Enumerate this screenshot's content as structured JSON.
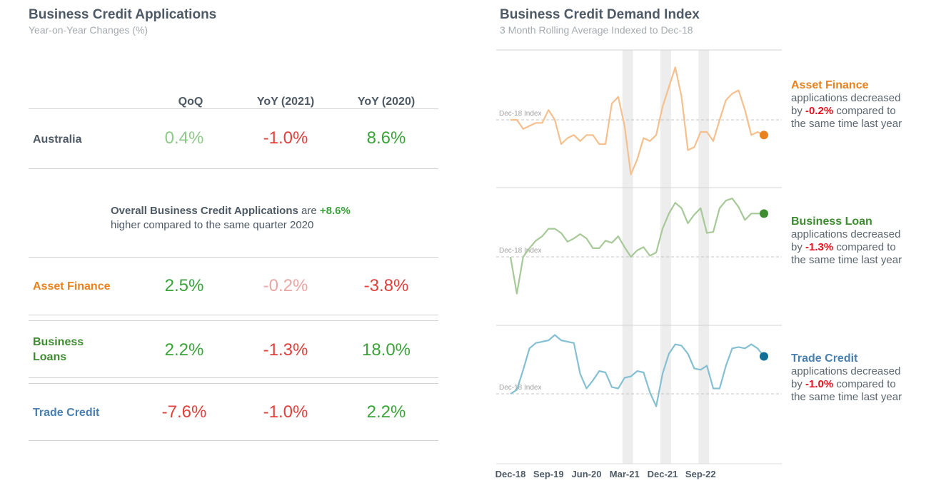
{
  "left_panel": {
    "title": "Business Credit Applications",
    "subtitle": "Year-on-Year Changes (%)",
    "columns": [
      "QoQ",
      "YoY (2021)",
      "YoY (2020)"
    ],
    "rows": [
      {
        "label": "Australia",
        "label_color": "#4e5a65",
        "values": [
          "0.4%",
          "-1.0%",
          "8.6%"
        ],
        "value_colors": [
          "#8fc98a",
          "#e0403c",
          "#3aa33a"
        ]
      },
      {
        "label": "Asset Finance",
        "label_color": "#e8821e",
        "values": [
          "2.5%",
          "-0.2%",
          "-3.8%"
        ],
        "value_colors": [
          "#3aa33a",
          "#e8a6a4",
          "#e0403c"
        ]
      },
      {
        "label": "Business Loans",
        "label_color": "#3d8c2f",
        "values": [
          "2.2%",
          "-1.3%",
          "18.0%"
        ],
        "value_colors": [
          "#3aa33a",
          "#e0403c",
          "#3aa33a"
        ]
      },
      {
        "label": "Trade Credit",
        "label_color": "#4a7fae",
        "values": [
          "-7.6%",
          "-1.0%",
          "2.2%"
        ],
        "value_colors": [
          "#e0403c",
          "#e0403c",
          "#3aa33a"
        ]
      }
    ],
    "note": {
      "bold": "Overall Business Credit Applications",
      "mid": " are ",
      "value": "+8.6%",
      "line2": "higher compared to the same quarter 2020"
    }
  },
  "right_panel": {
    "title": "Business Credit Demand Index",
    "subtitle": "3 Month Rolling Average Indexed to Dec-18",
    "annotations": [
      {
        "name": "Asset Finance",
        "color": "#e8821e",
        "line1": "applications decreased",
        "pre": "by ",
        "value": "-0.2%",
        "post": " compared to",
        "line3": "the same time last year"
      },
      {
        "name": "Business Loan",
        "color": "#3d8c2f",
        "line1": "applications decreased",
        "pre": "by ",
        "value": "-1.3%",
        "post": " compared to",
        "line3": "the same time last year"
      },
      {
        "name": "Trade Credit",
        "color": "#4a7fae",
        "line1": "applications decreased",
        "pre": "by ",
        "value": "-1.0%",
        "post": " compared to",
        "line3": "the same time last year"
      }
    ]
  },
  "chart_data": {
    "type": "line",
    "title": "Business Credit Demand Index",
    "subtitle": "3 Month Rolling Average Indexed to Dec-18",
    "x_tick_labels": [
      "Dec-18",
      "Sep-19",
      "Jun-20",
      "Mar-21",
      "Dec-21",
      "Sep-22"
    ],
    "index_label": "Dec-18 Index",
    "index_value": 100,
    "shaded_bands": [
      [
        18,
        19
      ],
      [
        24,
        25
      ],
      [
        30,
        31
      ]
    ],
    "end_marker": true,
    "grid": false,
    "series": [
      {
        "name": "Asset Finance",
        "color": "#f5c08e",
        "marker_color": "#e8821e",
        "values": [
          100,
          100,
          97,
          98,
          99,
          99,
          103,
          100,
          92,
          94,
          95,
          93,
          95,
          95,
          92,
          92,
          105,
          107,
          98,
          82,
          87,
          94,
          93,
          95,
          104,
          110,
          116,
          107,
          90,
          91,
          96,
          96,
          93,
          100,
          106,
          108,
          109,
          103,
          95,
          96,
          95
        ]
      },
      {
        "name": "Business Loan",
        "color": "#a7c998",
        "marker_color": "#3d8c2f",
        "values": [
          100,
          94,
          100,
          108,
          115,
          119,
          126,
          126,
          122,
          114,
          117,
          121,
          117,
          108,
          108,
          115,
          113,
          119,
          109,
          100,
          106,
          109,
          101,
          104,
          126,
          140,
          150,
          145,
          131,
          139,
          145,
          122,
          123,
          145,
          152,
          154,
          146,
          134,
          140,
          140,
          140
        ]
      },
      {
        "name": "Trade Credit",
        "color": "#84c0d2",
        "marker_color": "#0f6f95",
        "values": [
          100,
          103,
          118,
          134,
          138,
          139,
          140,
          144,
          140,
          139,
          138,
          115,
          104,
          110,
          117,
          116,
          105,
          104,
          112,
          113,
          117,
          116,
          101,
          99,
          115,
          130,
          137,
          136,
          130,
          119,
          118,
          121,
          104,
          104,
          121,
          134,
          135,
          134,
          137,
          134,
          128
        ]
      }
    ]
  }
}
